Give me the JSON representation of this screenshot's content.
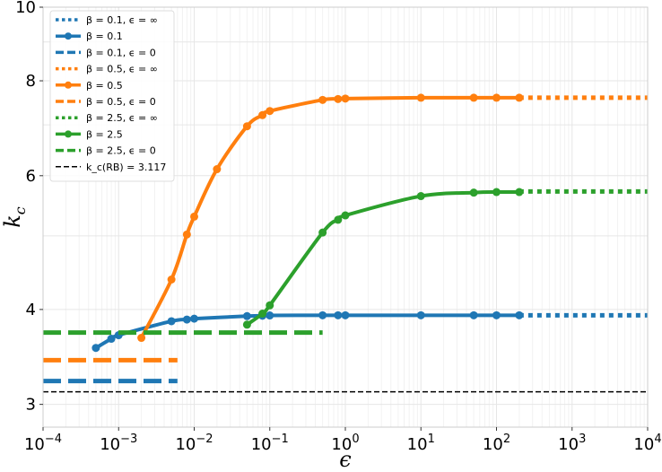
{
  "chart_data": {
    "type": "line",
    "xscale": "log",
    "yscale": "log",
    "xlim": [
      0.0001,
      10000
    ],
    "ylim": [
      2.8,
      10
    ],
    "grid": true,
    "legend_loc": "upper-left",
    "xlabel": "ϵ",
    "ylabel_base": "k",
    "ylabel_sub": "c",
    "xticks": [
      {
        "value": 0.0001,
        "base": "10",
        "exp": "−4"
      },
      {
        "value": 0.001,
        "base": "10",
        "exp": "−3"
      },
      {
        "value": 0.01,
        "base": "10",
        "exp": "−2"
      },
      {
        "value": 0.1,
        "base": "10",
        "exp": "−1"
      },
      {
        "value": 1,
        "base": "10",
        "exp": "0"
      },
      {
        "value": 10,
        "base": "10",
        "exp": "1"
      },
      {
        "value": 100,
        "base": "10",
        "exp": "2"
      },
      {
        "value": 1000,
        "base": "10",
        "exp": "3"
      },
      {
        "value": 10000,
        "base": "10",
        "exp": "4"
      }
    ],
    "yticks": [
      {
        "value": 3,
        "label": "3"
      },
      {
        "value": 4,
        "label": "4"
      },
      {
        "value": 6,
        "label": "6"
      },
      {
        "value": 8,
        "label": "8"
      },
      {
        "value": 10,
        "label": "10"
      }
    ],
    "series": [
      {
        "name": "β = 0.1, ϵ = ∞",
        "style": "dotted",
        "color": "#1f77b4",
        "x": [
          200,
          10000
        ],
        "y": [
          3.93,
          3.93
        ]
      },
      {
        "name": "β = 0.1",
        "style": "solid-marker",
        "color": "#1f77b4",
        "x": [
          0.0005,
          0.0008,
          0.001,
          0.005,
          0.008,
          0.01,
          0.05,
          0.08,
          0.1,
          0.5,
          0.8,
          1,
          10,
          50,
          100,
          200
        ],
        "y": [
          3.56,
          3.66,
          3.7,
          3.86,
          3.88,
          3.89,
          3.92,
          3.925,
          3.928,
          3.93,
          3.93,
          3.93,
          3.93,
          3.93,
          3.93,
          3.93
        ]
      },
      {
        "name": "β = 0.1, ϵ = 0",
        "style": "dashed",
        "color": "#1f77b4",
        "x": [
          0.0001,
          0.006
        ],
        "y": [
          3.22,
          3.22
        ]
      },
      {
        "name": "β = 0.5, ϵ = ∞",
        "style": "dotted",
        "color": "#ff7f0e",
        "x": [
          200,
          10000
        ],
        "y": [
          7.6,
          7.6
        ]
      },
      {
        "name": "β = 0.5",
        "style": "solid-marker",
        "color": "#ff7f0e",
        "x": [
          0.002,
          0.005,
          0.008,
          0.01,
          0.02,
          0.05,
          0.08,
          0.1,
          0.5,
          0.8,
          1,
          10,
          50,
          100,
          200
        ],
        "y": [
          3.67,
          4.38,
          5.02,
          5.3,
          6.12,
          6.97,
          7.21,
          7.3,
          7.55,
          7.57,
          7.58,
          7.6,
          7.6,
          7.6,
          7.6
        ]
      },
      {
        "name": "β = 0.5, ϵ = 0",
        "style": "dashed",
        "color": "#ff7f0e",
        "x": [
          0.0001,
          0.006
        ],
        "y": [
          3.43,
          3.43
        ]
      },
      {
        "name": "β = 2.5, ϵ = ∞",
        "style": "dotted",
        "color": "#2ca02c",
        "x": [
          200,
          10000
        ],
        "y": [
          5.72,
          5.72
        ]
      },
      {
        "name": "β = 2.5",
        "style": "solid-marker",
        "color": "#2ca02c",
        "x": [
          0.05,
          0.08,
          0.1,
          0.5,
          0.8,
          1,
          10,
          50,
          100,
          200
        ],
        "y": [
          3.82,
          3.95,
          4.05,
          5.05,
          5.25,
          5.32,
          5.64,
          5.7,
          5.71,
          5.71
        ]
      },
      {
        "name": "β = 2.5, ϵ = 0",
        "style": "dashed",
        "color": "#2ca02c",
        "x": [
          0.0001,
          0.5
        ],
        "y": [
          3.73,
          3.73
        ]
      },
      {
        "name": "k_c(RB) = 3.117",
        "style": "thin-dashed",
        "color": "#000000",
        "x": [
          0.0001,
          10000
        ],
        "y": [
          3.117,
          3.117
        ]
      }
    ],
    "legend_items": [
      {
        "name": "β = 0.1, ϵ = ∞",
        "style": "dotted",
        "color": "#1f77b4"
      },
      {
        "name": "β = 0.1",
        "style": "solid-marker",
        "color": "#1f77b4"
      },
      {
        "name": "β = 0.1, ϵ = 0",
        "style": "dashed",
        "color": "#1f77b4"
      },
      {
        "name": "β = 0.5, ϵ = ∞",
        "style": "dotted",
        "color": "#ff7f0e"
      },
      {
        "name": "β = 0.5",
        "style": "solid-marker",
        "color": "#ff7f0e"
      },
      {
        "name": "β = 0.5, ϵ = 0",
        "style": "dashed",
        "color": "#ff7f0e"
      },
      {
        "name": "β = 2.5, ϵ = ∞",
        "style": "dotted",
        "color": "#2ca02c"
      },
      {
        "name": "β = 2.5",
        "style": "solid-marker",
        "color": "#2ca02c"
      },
      {
        "name": "β = 2.5, ϵ = 0",
        "style": "dashed",
        "color": "#2ca02c"
      },
      {
        "name": "k_c(RB) = 3.117",
        "style": "thin-dashed",
        "color": "#000000"
      }
    ]
  }
}
